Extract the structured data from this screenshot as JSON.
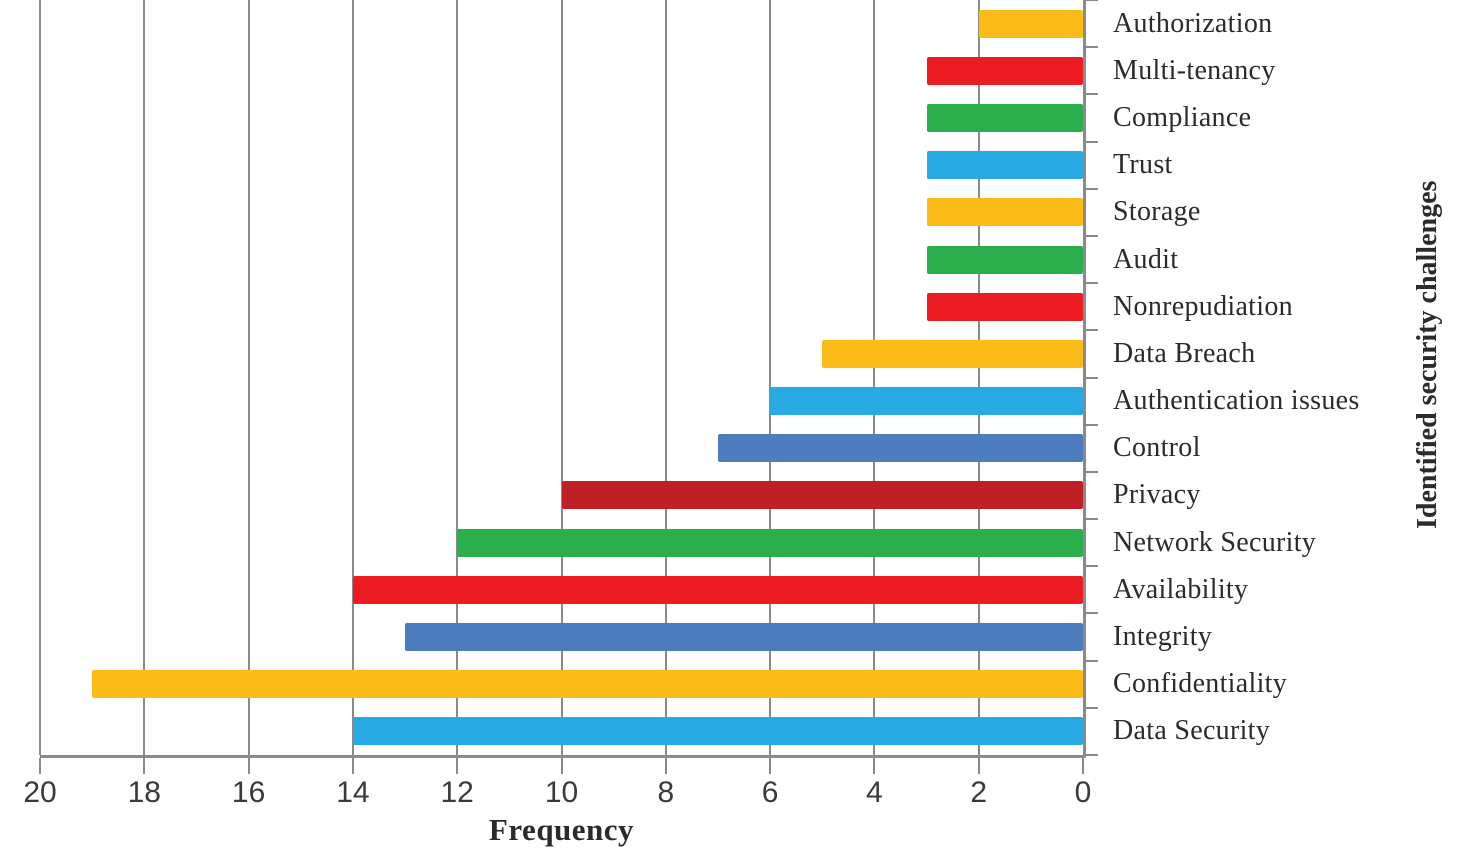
{
  "chart_data": {
    "type": "bar",
    "orientation": "horizontal",
    "value_axis_reversed": true,
    "title": "",
    "xlabel": "Frequency",
    "ylabel": "Identified security challenges",
    "xlim": [
      0,
      20
    ],
    "x_ticks": [
      20,
      18,
      16,
      14,
      12,
      10,
      8,
      6,
      4,
      2,
      0
    ],
    "grid": true,
    "legend": "none",
    "categories": [
      "Authorization",
      "Multi-tenancy",
      "Compliance",
      "Trust",
      "Storage",
      "Audit",
      "Nonrepudiation",
      "Data Breach",
      "Authentication issues",
      "Control",
      "Privacy",
      "Network Security",
      "Availability",
      "Integrity",
      "Confidentiality",
      "Data Security"
    ],
    "values": [
      2,
      3,
      3,
      3,
      3,
      3,
      3,
      5,
      6,
      7,
      10,
      12,
      14,
      13,
      19,
      14
    ],
    "bar_color_keys": [
      "yellow",
      "red",
      "green",
      "cyan",
      "yellow",
      "green",
      "red",
      "yellow",
      "cyan",
      "blue",
      "darkred",
      "green",
      "red",
      "blue",
      "yellow",
      "cyan"
    ],
    "palette": {
      "yellow": "#FBBC19",
      "red": "#EC1C24",
      "green": "#2BAF4C",
      "cyan": "#29A9E1",
      "blue": "#4C7BBE",
      "darkred": "#BE2026"
    },
    "axis_color": "#8A8A8A",
    "text_color": "#2B2B2B"
  }
}
